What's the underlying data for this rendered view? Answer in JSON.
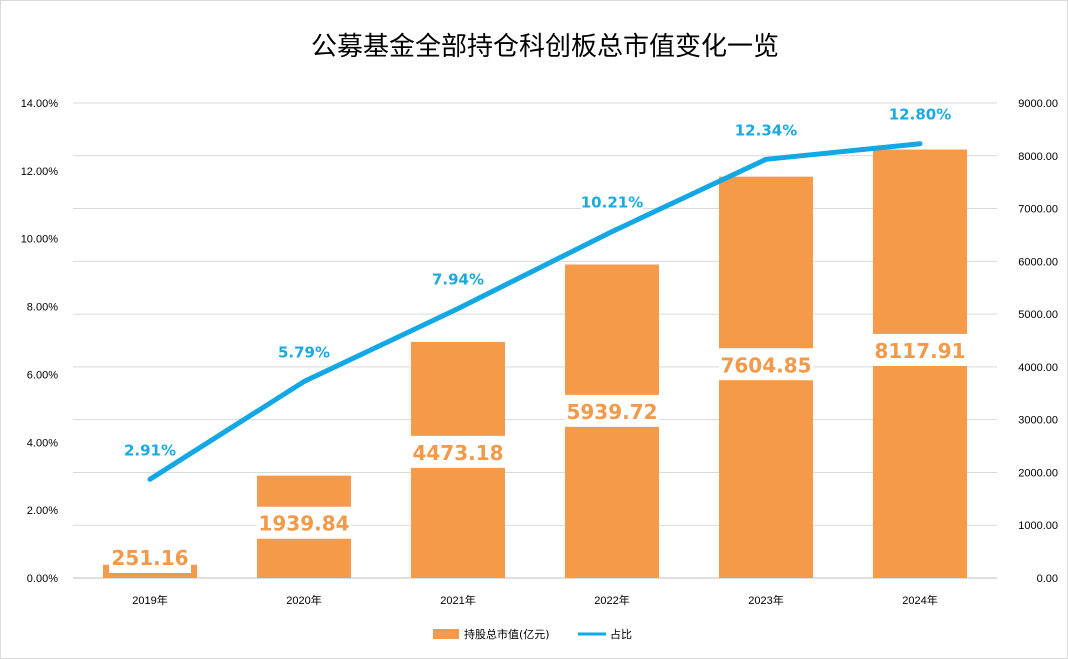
{
  "chart_data": {
    "type": "bar+line",
    "title": "公募基金全部持仓科创板总市值变化一览",
    "categories": [
      "2019年",
      "2020年",
      "2021年",
      "2022年",
      "2023年",
      "2024年"
    ],
    "bar_series": {
      "name": "持股总市值(亿元)",
      "values": [
        251.16,
        1939.84,
        4473.18,
        5939.72,
        7604.85,
        8117.91
      ],
      "labels": [
        "251.16",
        "1939.84",
        "4473.18",
        "5939.72",
        "7604.85",
        "8117.91"
      ],
      "axis": "right",
      "color": "#f59a48"
    },
    "line_series": {
      "name": "占比",
      "values": [
        2.91,
        5.79,
        7.94,
        10.21,
        12.34,
        12.8
      ],
      "labels": [
        "2.91%",
        "5.79%",
        "7.94%",
        "10.21%",
        "12.34%",
        "12.80%"
      ],
      "axis": "left",
      "color": "#12a7e5"
    },
    "left_axis": {
      "ylim": [
        0,
        14
      ],
      "ticks": [
        "0.00%",
        "2.00%",
        "4.00%",
        "6.00%",
        "8.00%",
        "10.00%",
        "12.00%",
        "14.00%"
      ]
    },
    "right_axis": {
      "ylim": [
        0,
        9000
      ],
      "ticks": [
        "0.00",
        "1000.00",
        "2000.00",
        "3000.00",
        "4000.00",
        "5000.00",
        "6000.00",
        "7000.00",
        "8000.00",
        "9000.00"
      ]
    },
    "grid": true,
    "legend": "bottom"
  }
}
